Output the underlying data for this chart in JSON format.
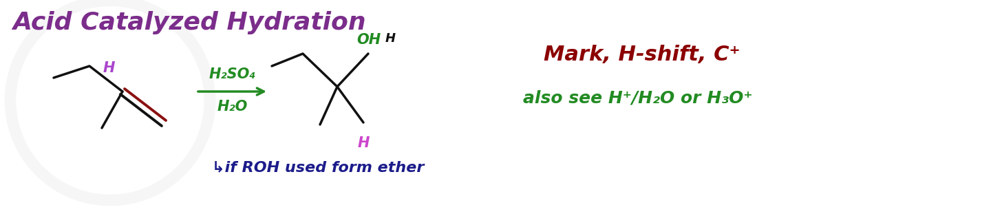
{
  "title": "Acid Catalyzed Hydration",
  "title_color": "#7B2D8B",
  "title_fontsize": 26,
  "bg_color": "#FFFFFF",
  "reagent_line1": "H₂SO₄",
  "reagent_line2": "H₂O",
  "reagent_color": "#228B22",
  "note_line1": "Mark, H-shift, C⁺",
  "note_color": "#8B0000",
  "note_line2": "also see H⁺/H₂O or H₃O⁺",
  "note2_color": "#228B22",
  "footnote": "↳if ROH used form ether",
  "footnote_color": "#1C1C8B",
  "alkene_color": "#111111",
  "double_bond_color": "#8B1010",
  "h_label_color": "#AA44CC",
  "oh_color": "#228B22",
  "product_h_color": "#CC44CC",
  "arrow_color": "#228B22",
  "footnote_arrow_color": "#1C1C8B"
}
